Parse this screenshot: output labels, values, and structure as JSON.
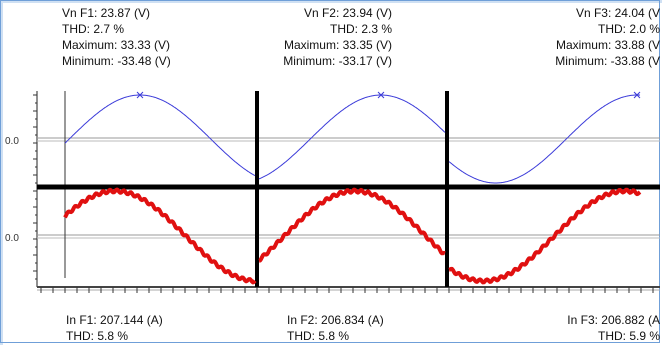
{
  "voltage_panels": [
    {
      "name": "Vn F1",
      "label": "Vn F1: 23.87 (V)",
      "thd": "THD: 2.7 %",
      "max": "Maximum: 33.33 (V)",
      "min": "Minimum: -33.48 (V)"
    },
    {
      "name": "Vn F2",
      "label": "Vn F2: 23.94 (V)",
      "thd": "THD: 2.3 %",
      "max": "Maximum: 33.35 (V)",
      "min": "Minimum: -33.17 (V)"
    },
    {
      "name": "Vn F3",
      "label": "Vn F3: 24.04 (V",
      "thd": "THD: 2.0 %",
      "max": "Maximum: 33.88 (V",
      "min": "Minimum: -33.88 (V"
    }
  ],
  "current_panels": [
    {
      "name": "In F1",
      "label": "In F1: 207.144 (A)",
      "thd": "THD: 5.8 %"
    },
    {
      "name": "In F2",
      "label": "In F2: 206.834 (A)",
      "thd": "THD: 5.8 %"
    },
    {
      "name": "In F3",
      "label": "In F3: 206.882 (A",
      "thd": "THD: 5.9 %"
    }
  ],
  "axis": {
    "voltage_zero_label": "0.0",
    "current_zero_label": "0.0"
  },
  "colors": {
    "voltage": "#3b3bd9",
    "current": "#e01010",
    "divider": "#000000",
    "frame": "#6f9fd8"
  },
  "chart_data": {
    "type": "line",
    "series": [
      {
        "role": "voltage",
        "phases": [
          "Vn F1",
          "Vn F2",
          "Vn F3"
        ],
        "amplitude": [
          33.33,
          33.35,
          33.88
        ],
        "thd_percent": [
          2.7,
          2.3,
          2.0
        ],
        "rms": [
          23.87,
          23.94,
          24.04
        ]
      },
      {
        "role": "current",
        "phases": [
          "In F1",
          "In F2",
          "In F3"
        ],
        "rms": [
          207.144,
          206.834,
          206.882
        ],
        "thd_percent": [
          5.8,
          5.8,
          5.9
        ]
      }
    ],
    "cycles_per_panel": 1,
    "grid": false
  }
}
